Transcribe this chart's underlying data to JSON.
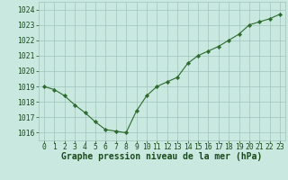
{
  "x": [
    0,
    1,
    2,
    3,
    4,
    5,
    6,
    7,
    8,
    9,
    10,
    11,
    12,
    13,
    14,
    15,
    16,
    17,
    18,
    19,
    20,
    21,
    22,
    23
  ],
  "y": [
    1019.0,
    1018.8,
    1018.4,
    1017.8,
    1017.3,
    1016.7,
    1016.2,
    1016.1,
    1016.0,
    1017.4,
    1018.4,
    1019.0,
    1019.3,
    1019.6,
    1020.5,
    1021.0,
    1021.3,
    1021.6,
    1022.0,
    1022.4,
    1023.0,
    1023.2,
    1023.4,
    1023.7
  ],
  "ylim": [
    1015.5,
    1024.5
  ],
  "yticks": [
    1016,
    1017,
    1018,
    1019,
    1020,
    1021,
    1022,
    1023,
    1024
  ],
  "xtick_labels": [
    "0",
    "1",
    "2",
    "3",
    "4",
    "5",
    "6",
    "7",
    "8",
    "9",
    "10",
    "11",
    "12",
    "13",
    "14",
    "15",
    "16",
    "17",
    "18",
    "19",
    "20",
    "21",
    "22",
    "23"
  ],
  "xlabel": "Graphe pression niveau de la mer (hPa)",
  "line_color": "#2d6a2d",
  "marker_color": "#2d6a2d",
  "bg_color": "#c8e8e0",
  "grid_color": "#9fc4bc",
  "text_color": "#1a4a1a",
  "label_fontsize": 6.5,
  "tick_fontsize": 5.8,
  "xlabel_fontsize": 7.0
}
